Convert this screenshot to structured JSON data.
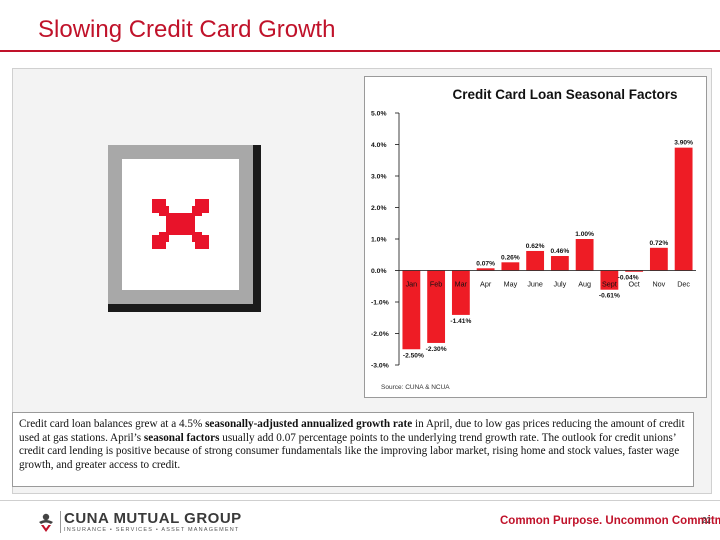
{
  "slide": {
    "title": "Slowing Credit Card Growth",
    "page_number": "22"
  },
  "body_text": {
    "part1": "Credit card loan balances grew at a 4.5% ",
    "bold1": "seasonally-adjusted annualized growth rate",
    "part2": " in April, due to low gas prices reducing the amount of credit used at gas stations. April’s ",
    "bold2": "seasonal factors",
    "part3": " usually add 0.07 percentage points to the underlying trend growth rate.  The outlook for credit unions’ credit card lending is positive because of strong consumer fundamentals like the improving labor market, rising home and stock values, faster wage growth, and greater access to credit."
  },
  "footer": {
    "logo_name": "CUNA MUTUAL GROUP",
    "logo_tagline": "INSURANCE • SERVICES • ASSET MANAGEMENT",
    "tagline": "Common Purpose. Uncommon Commitment."
  },
  "colors": {
    "brand_red": "#c0122a",
    "bar_red": "#ee1c25"
  },
  "icons": {
    "placeholder": "broken-image-icon",
    "logo": "cuna-mutual-logo-icon"
  },
  "chart_data": {
    "type": "bar",
    "title": "Credit Card Loan Seasonal Factors",
    "categories": [
      "Jan",
      "Feb",
      "Mar",
      "Apr",
      "May",
      "June",
      "July",
      "Aug",
      "Sept",
      "Oct",
      "Nov",
      "Dec"
    ],
    "values": [
      -2.5,
      -2.3,
      -1.41,
      0.07,
      0.26,
      0.62,
      0.46,
      1.0,
      -0.61,
      -0.04,
      0.72,
      3.9
    ],
    "data_labels": [
      "-2.50%",
      "-2.30%",
      "-1.41%",
      "0.07%",
      "0.26%",
      "0.62%",
      "0.46%",
      "1.00%",
      "-0.61%",
      "-0.04%",
      "0.72%",
      "3.90%"
    ],
    "yticks": [
      "5.0%",
      "4.0%",
      "3.0%",
      "2.0%",
      "1.0%",
      "0.0%",
      "-1.0%",
      "-2.0%",
      "-3.0%"
    ],
    "ylim": [
      -3,
      5
    ],
    "source": "Source: CUNA & NCUA",
    "grid": false,
    "legend": "none"
  }
}
